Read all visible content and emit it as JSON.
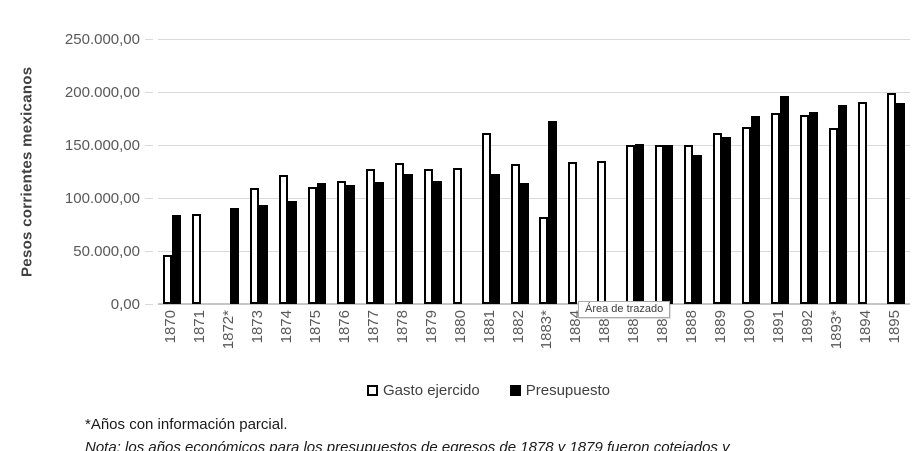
{
  "chart_data": {
    "type": "bar",
    "title": "",
    "xlabel": "",
    "ylabel": "Pesos corrientes mexicanos",
    "ylim": [
      0,
      250000
    ],
    "grid": true,
    "legend_position": "bottom",
    "yticks": [
      {
        "value": 0,
        "label": "0,00"
      },
      {
        "value": 50000,
        "label": "50.000,00"
      },
      {
        "value": 100000,
        "label": "100.000,00"
      },
      {
        "value": 150000,
        "label": "150.000,00"
      },
      {
        "value": 200000,
        "label": "200.000,00"
      },
      {
        "value": 250000,
        "label": "250.000,00"
      }
    ],
    "categories": [
      "1870",
      "1871",
      "1872*",
      "1873",
      "1874",
      "1875",
      "1876",
      "1877",
      "1878",
      "1879",
      "1880",
      "1881",
      "1882",
      "1883*",
      "1884",
      "1885",
      "1886",
      "1887",
      "1888",
      "1889",
      "1890",
      "1891",
      "1892",
      "1893*",
      "1894",
      "1895"
    ],
    "series": [
      {
        "name": "Gasto ejercido",
        "fill": "#FFFFFF",
        "border": "#000000",
        "values": [
          46000,
          85000,
          null,
          109000,
          122000,
          110000,
          116000,
          127000,
          133000,
          127000,
          128000,
          161000,
          132000,
          82000,
          134000,
          135000,
          150000,
          150000,
          150000,
          161000,
          167000,
          180000,
          178000,
          166000,
          191000,
          199000
        ]
      },
      {
        "name": "Presupuesto",
        "fill": "#000000",
        "border": "#000000",
        "values": [
          84000,
          null,
          91000,
          93000,
          97000,
          114000,
          112000,
          115000,
          123000,
          116000,
          null,
          123000,
          114000,
          173000,
          null,
          null,
          151000,
          150000,
          141000,
          158000,
          177000,
          196000,
          181000,
          188000,
          null,
          190000
        ]
      }
    ]
  },
  "tooltip": {
    "label": "Área de trazado"
  },
  "footer": {
    "note_partial": "*Años con información parcial.",
    "note": "Nota: los años económicos para los presupuestos de egresos de 1878 y 1879 fueron cotejados y"
  },
  "colors": {
    "gridline": "#D9D9D9",
    "axis_text": "#595959",
    "axis_title": "#404040",
    "bar_gasto": "#FFFFFF",
    "bar_presupuesto": "#000000"
  }
}
